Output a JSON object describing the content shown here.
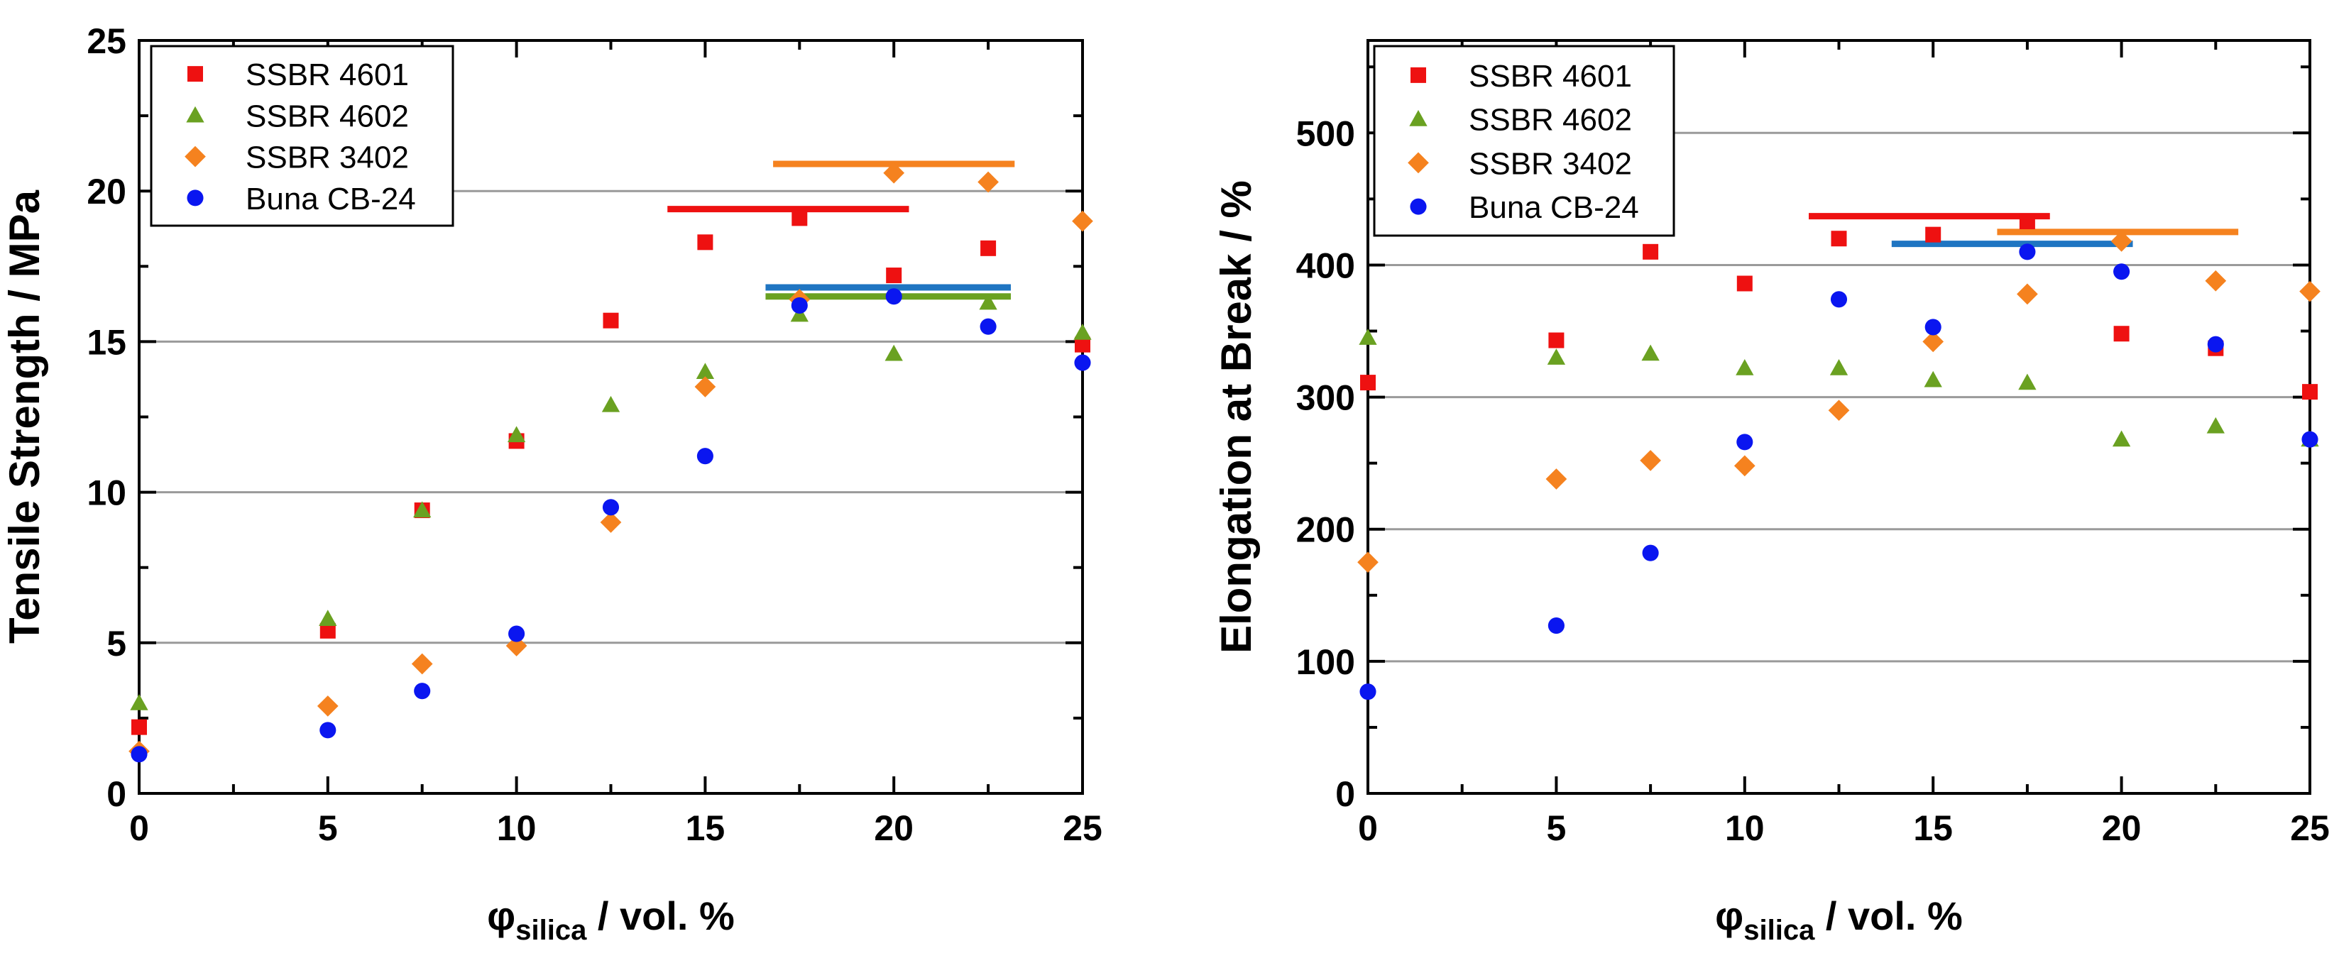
{
  "colors": {
    "SSBR 4601": "#ee1111",
    "SSBR 4602": "#6aa121",
    "SSBR 3402": "#f5821f",
    "Buna CB-24": "#0a16f0",
    "hline_red": "#ee1111",
    "hline_orange": "#f5821f",
    "hline_blue": "#1f75c2",
    "hline_green": "#6aa121"
  },
  "chart_data": [
    {
      "type": "scatter",
      "title": "",
      "xlabel_symbol": "φ",
      "xlabel_sub": "silica",
      "xlabel_rest": " / vol. %",
      "ylabel": "Tensile Strength / MPa",
      "xlim": [
        0,
        25
      ],
      "ylim": [
        0,
        25
      ],
      "xticks": [
        0,
        5,
        10,
        15,
        20,
        25
      ],
      "yticks": [
        0,
        5,
        10,
        15,
        20,
        25
      ],
      "gridlines_y": [
        5,
        10,
        15,
        20
      ],
      "legend_position": "top-left",
      "series": [
        {
          "name": "SSBR 4601",
          "marker": "square",
          "x": [
            0,
            5,
            7.5,
            10,
            12.5,
            15,
            17.5,
            20,
            22.5,
            25
          ],
          "y": [
            2.2,
            5.4,
            9.4,
            11.7,
            15.7,
            18.3,
            19.1,
            17.2,
            18.1,
            14.9
          ]
        },
        {
          "name": "SSBR 4602",
          "marker": "triangle",
          "x": [
            0,
            5,
            7.5,
            10,
            12.5,
            15,
            17.5,
            20,
            22.5,
            25
          ],
          "y": [
            3.0,
            5.8,
            9.4,
            11.9,
            12.9,
            14.0,
            15.9,
            14.6,
            16.3,
            15.3
          ]
        },
        {
          "name": "SSBR 3402",
          "marker": "diamond",
          "x": [
            0,
            5,
            7.5,
            10,
            12.5,
            15,
            17.5,
            20,
            22.5,
            25
          ],
          "y": [
            1.4,
            2.9,
            4.3,
            4.9,
            9.0,
            13.5,
            16.4,
            20.6,
            20.3,
            19.0
          ]
        },
        {
          "name": "Buna CB-24",
          "marker": "circle",
          "x": [
            0,
            5,
            7.5,
            10,
            12.5,
            15,
            17.5,
            20,
            22.5,
            25
          ],
          "y": [
            1.3,
            2.1,
            3.4,
            5.3,
            9.5,
            11.2,
            16.2,
            16.5,
            15.5,
            14.3
          ]
        }
      ],
      "reference_lines": [
        {
          "color_key": "hline_red",
          "y": 19.4,
          "x_from": 14.0,
          "x_to": 20.4
        },
        {
          "color_key": "hline_orange",
          "y": 20.9,
          "x_from": 16.8,
          "x_to": 23.2
        },
        {
          "color_key": "hline_blue",
          "y": 16.8,
          "x_from": 16.6,
          "x_to": 23.1
        },
        {
          "color_key": "hline_green",
          "y": 16.5,
          "x_from": 16.6,
          "x_to": 23.1
        }
      ]
    },
    {
      "type": "scatter",
      "title": "",
      "xlabel_symbol": "φ",
      "xlabel_sub": "silica",
      "xlabel_rest": " / vol. %",
      "ylabel": "Elongation at Break / %",
      "xlim": [
        0,
        25
      ],
      "ylim": [
        0,
        570
      ],
      "xticks": [
        0,
        5,
        10,
        15,
        20,
        25
      ],
      "yticks": [
        0,
        100,
        200,
        300,
        400,
        500
      ],
      "gridlines_y": [
        100,
        200,
        300,
        400,
        500
      ],
      "legend_position": "top-left",
      "series": [
        {
          "name": "SSBR 4601",
          "marker": "square",
          "x": [
            0,
            5,
            7.5,
            10,
            12.5,
            15,
            17.5,
            20,
            22.5,
            25
          ],
          "y": [
            311,
            343,
            410,
            386,
            420,
            423,
            433,
            348,
            337,
            304
          ]
        },
        {
          "name": "SSBR 4602",
          "marker": "triangle",
          "x": [
            0,
            5,
            7.5,
            10,
            12.5,
            15,
            17.5,
            20,
            22.5,
            25
          ],
          "y": [
            345,
            330,
            333,
            322,
            322,
            313,
            311,
            268,
            278,
            268
          ]
        },
        {
          "name": "SSBR 3402",
          "marker": "diamond",
          "x": [
            0,
            5,
            7.5,
            10,
            12.5,
            15,
            17.5,
            20,
            22.5,
            25
          ],
          "y": [
            175,
            238,
            252,
            248,
            290,
            342,
            378,
            418,
            388,
            380
          ]
        },
        {
          "name": "Buna CB-24",
          "marker": "circle",
          "x": [
            0,
            5,
            7.5,
            10,
            12.5,
            15,
            17.5,
            20,
            22.5,
            25
          ],
          "y": [
            77,
            127,
            182,
            266,
            374,
            353,
            410,
            395,
            340,
            268
          ]
        }
      ],
      "reference_lines": [
        {
          "color_key": "hline_red",
          "y": 437,
          "x_from": 11.7,
          "x_to": 18.1
        },
        {
          "color_key": "hline_orange",
          "y": 425,
          "x_from": 16.7,
          "x_to": 23.1
        },
        {
          "color_key": "hline_blue",
          "y": 416,
          "x_from": 13.9,
          "x_to": 20.3
        }
      ]
    }
  ]
}
